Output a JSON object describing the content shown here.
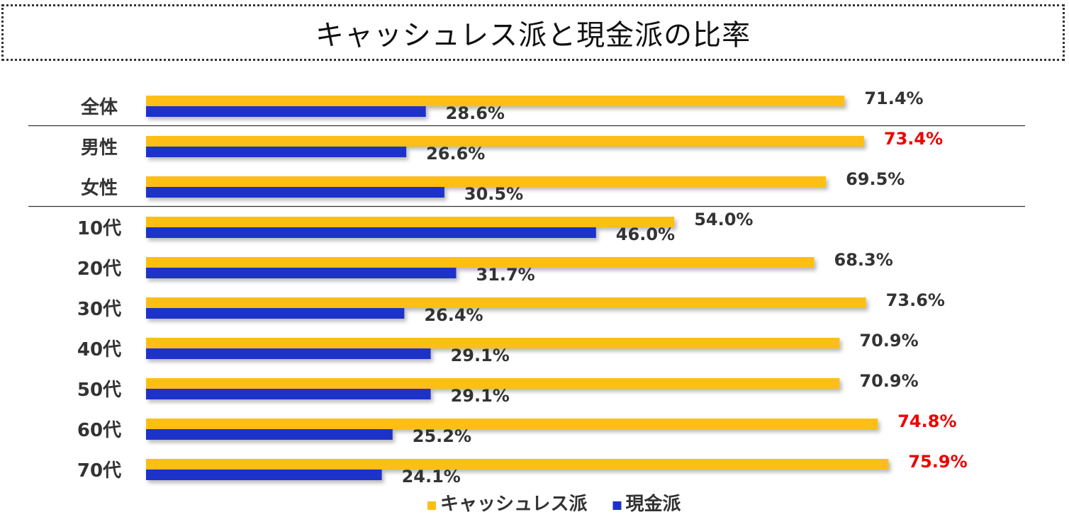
{
  "chart_data": {
    "type": "bar",
    "orientation": "horizontal",
    "title": "キャッシュレス派と現金派の比率",
    "categories": [
      "全体",
      "男性",
      "女性",
      "10代",
      "20代",
      "30代",
      "40代",
      "50代",
      "60代",
      "70代"
    ],
    "series": [
      {
        "name": "キャッシュレス派",
        "color": "#FDBF17",
        "values": [
          71.4,
          73.4,
          69.5,
          54.0,
          68.3,
          73.6,
          70.9,
          70.9,
          74.8,
          75.9
        ],
        "labels": [
          "71.4%",
          "73.4%",
          "69.5%",
          "54.0%",
          "68.3%",
          "73.6%",
          "70.9%",
          "70.9%",
          "74.8%",
          "75.9%"
        ],
        "highlight": [
          false,
          true,
          false,
          false,
          false,
          false,
          false,
          false,
          true,
          true
        ]
      },
      {
        "name": "現金派",
        "color": "#1A33C9",
        "values": [
          28.6,
          26.6,
          30.5,
          46.0,
          31.7,
          26.4,
          29.1,
          29.1,
          25.2,
          24.1
        ],
        "labels": [
          "28.6%",
          "26.6%",
          "30.5%",
          "46.0%",
          "31.7%",
          "26.4%",
          "29.1%",
          "29.1%",
          "25.2%",
          "24.1%"
        ],
        "highlight": [
          false,
          false,
          false,
          false,
          false,
          false,
          false,
          false,
          false,
          false
        ]
      }
    ],
    "label_color": "#333333",
    "highlight_color": "#EE0000",
    "xlim": [
      0,
      100
    ],
    "legend_position": "bottom-center",
    "group_separators_after": [
      "全体",
      "女性"
    ],
    "grid": false
  }
}
